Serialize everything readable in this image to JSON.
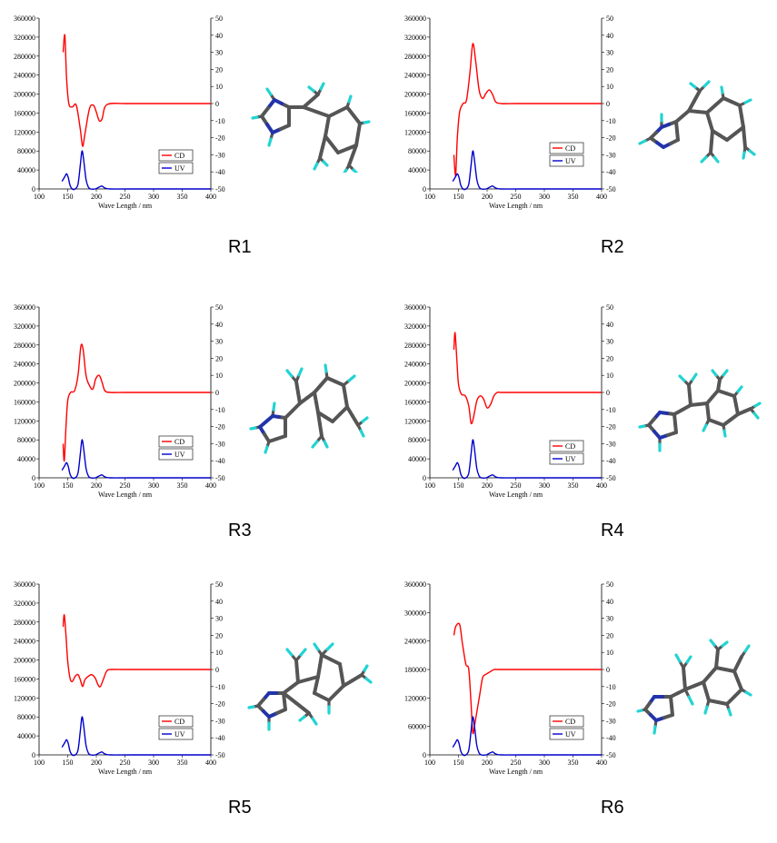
{
  "colors": {
    "cd": "#ff0000",
    "uv": "#0000cc",
    "axis": "#000000"
  },
  "chart_data": [
    {
      "type": "line",
      "label": "R1",
      "xlabel": "Wave Length / nm",
      "xlim": [
        100,
        400
      ],
      "xticks": [
        100,
        150,
        200,
        250,
        300,
        350,
        400
      ],
      "ylim_left": [
        0,
        360000
      ],
      "yticks_left": [
        0,
        40000,
        80000,
        120000,
        160000,
        200000,
        240000,
        280000,
        320000,
        360000
      ],
      "ylim_right": [
        -50,
        50
      ],
      "yticks_right": [
        -50,
        -40,
        -30,
        -20,
        -10,
        0,
        10,
        20,
        30,
        40,
        50
      ],
      "legend": {
        "cd": "CD",
        "uv": "UV"
      },
      "series": [
        {
          "name": "CD",
          "axis": "right",
          "x": [
            142,
            145,
            148,
            152,
            158,
            165,
            172,
            176,
            180,
            188,
            195,
            200,
            205,
            210,
            215,
            225,
            250,
            300,
            400
          ],
          "y": [
            30,
            40,
            15,
            0,
            -2,
            -1,
            -15,
            -25,
            -18,
            -3,
            -1,
            -5,
            -10,
            -9,
            -2,
            0,
            0,
            0,
            0
          ]
        },
        {
          "name": "UV",
          "axis": "left",
          "x": [
            140,
            142,
            145,
            148,
            151,
            154,
            158,
            163,
            168,
            172,
            175,
            178,
            182,
            186,
            190,
            198,
            205,
            210,
            215,
            225,
            260,
            400
          ],
          "y": [
            16000,
            20000,
            26000,
            32000,
            24000,
            8000,
            0,
            0,
            10000,
            50000,
            80000,
            60000,
            20000,
            4000,
            0,
            0,
            4000,
            6000,
            2000,
            0,
            0,
            0
          ]
        }
      ]
    },
    {
      "type": "line",
      "label": "R2",
      "xlabel": "Wave Length / nm",
      "xlim": [
        100,
        400
      ],
      "xticks": [
        100,
        150,
        200,
        250,
        300,
        350,
        400
      ],
      "ylim_left": [
        0,
        360000
      ],
      "yticks_left": [
        0,
        40000,
        80000,
        120000,
        160000,
        200000,
        240000,
        280000,
        320000,
        360000
      ],
      "ylim_right": [
        -50,
        50
      ],
      "yticks_right": [
        -50,
        -40,
        -30,
        -20,
        -10,
        0,
        10,
        20,
        30,
        40,
        50
      ],
      "legend": {
        "cd": "CD",
        "uv": "UV"
      },
      "series": [
        {
          "name": "CD",
          "axis": "right",
          "x": [
            142,
            145,
            148,
            152,
            158,
            164,
            170,
            175,
            180,
            186,
            192,
            198,
            204,
            210,
            215,
            225,
            250,
            300,
            400
          ],
          "y": [
            -30,
            -42,
            -20,
            -5,
            0,
            2,
            18,
            35,
            25,
            8,
            3,
            6,
            8,
            5,
            1,
            0,
            0,
            0,
            0
          ]
        },
        {
          "name": "UV",
          "axis": "left",
          "x": [
            140,
            142,
            145,
            148,
            151,
            154,
            158,
            163,
            168,
            172,
            175,
            178,
            182,
            186,
            190,
            198,
            205,
            210,
            215,
            225,
            260,
            400
          ],
          "y": [
            16000,
            20000,
            26000,
            32000,
            24000,
            8000,
            0,
            0,
            10000,
            50000,
            80000,
            60000,
            20000,
            4000,
            0,
            0,
            4000,
            6000,
            2000,
            0,
            0,
            0
          ]
        }
      ]
    },
    {
      "type": "line",
      "label": "R3",
      "xlabel": "Wave Length / nm",
      "xlim": [
        100,
        400
      ],
      "xticks": [
        100,
        150,
        200,
        250,
        300,
        350,
        400
      ],
      "ylim_left": [
        0,
        360000
      ],
      "yticks_left": [
        0,
        40000,
        80000,
        120000,
        160000,
        200000,
        240000,
        280000,
        320000,
        360000
      ],
      "ylim_right": [
        -50,
        50
      ],
      "yticks_right": [
        -50,
        -40,
        -30,
        -20,
        -10,
        0,
        10,
        20,
        30,
        40,
        50
      ],
      "legend": {
        "cd": "CD",
        "uv": "UV"
      },
      "series": [
        {
          "name": "CD",
          "axis": "right",
          "x": [
            142,
            144,
            147,
            150,
            155,
            162,
            168,
            173,
            177,
            182,
            188,
            194,
            199,
            205,
            210,
            215,
            225,
            250,
            300,
            400
          ],
          "y": [
            -30,
            -40,
            -20,
            -5,
            0,
            1,
            10,
            27,
            25,
            10,
            4,
            2,
            8,
            10,
            6,
            1,
            0,
            0,
            0,
            0
          ]
        },
        {
          "name": "UV",
          "axis": "left",
          "x": [
            140,
            142,
            145,
            148,
            151,
            154,
            158,
            163,
            168,
            172,
            175,
            178,
            182,
            186,
            190,
            198,
            205,
            210,
            215,
            225,
            260,
            400
          ],
          "y": [
            16000,
            20000,
            26000,
            32000,
            24000,
            8000,
            0,
            0,
            10000,
            50000,
            80000,
            60000,
            20000,
            4000,
            0,
            0,
            4000,
            6000,
            2000,
            0,
            0,
            0
          ]
        }
      ]
    },
    {
      "type": "line",
      "label": "R4",
      "xlabel": "Wave Length / nm",
      "xlim": [
        100,
        400
      ],
      "xticks": [
        100,
        150,
        200,
        250,
        300,
        350,
        400
      ],
      "ylim_left": [
        0,
        360000
      ],
      "yticks_left": [
        0,
        40000,
        80000,
        120000,
        160000,
        200000,
        240000,
        280000,
        320000,
        360000
      ],
      "ylim_right": [
        -50,
        50
      ],
      "yticks_right": [
        -50,
        -40,
        -30,
        -20,
        -10,
        0,
        10,
        20,
        30,
        40,
        50
      ],
      "legend": {
        "cd": "CD",
        "uv": "UV"
      },
      "series": [
        {
          "name": "CD",
          "axis": "right",
          "x": [
            142,
            144,
            147,
            150,
            155,
            162,
            168,
            172,
            176,
            182,
            188,
            194,
            200,
            206,
            212,
            218,
            225,
            250,
            300,
            400
          ],
          "y": [
            25,
            35,
            20,
            5,
            -1,
            -2,
            -8,
            -18,
            -15,
            -5,
            -2,
            -4,
            -9,
            -7,
            -2,
            0,
            0,
            0,
            0,
            0
          ]
        },
        {
          "name": "UV",
          "axis": "left",
          "x": [
            140,
            142,
            145,
            148,
            151,
            154,
            158,
            163,
            168,
            172,
            175,
            178,
            182,
            186,
            190,
            198,
            205,
            210,
            215,
            225,
            260,
            400
          ],
          "y": [
            16000,
            20000,
            26000,
            32000,
            24000,
            8000,
            0,
            0,
            10000,
            50000,
            80000,
            60000,
            20000,
            4000,
            0,
            0,
            4000,
            6000,
            2000,
            0,
            0,
            0
          ]
        }
      ]
    },
    {
      "type": "line",
      "label": "R5",
      "xlabel": "Wave Length / nm",
      "xlim": [
        100,
        400
      ],
      "xticks": [
        100,
        150,
        200,
        250,
        300,
        350,
        400
      ],
      "ylim_left": [
        0,
        360000
      ],
      "yticks_left": [
        0,
        40000,
        80000,
        120000,
        160000,
        200000,
        240000,
        280000,
        320000,
        360000
      ],
      "ylim_right": [
        -50,
        50
      ],
      "yticks_right": [
        -50,
        -40,
        -30,
        -20,
        -10,
        0,
        10,
        20,
        30,
        40,
        50
      ],
      "legend": {
        "cd": "CD",
        "uv": "UV"
      },
      "series": [
        {
          "name": "CD",
          "axis": "right",
          "x": [
            142,
            144,
            147,
            150,
            154,
            158,
            163,
            168,
            172,
            176,
            180,
            186,
            192,
            198,
            203,
            207,
            212,
            218,
            225,
            250,
            300,
            400
          ],
          "y": [
            25,
            32,
            20,
            5,
            -5,
            -7,
            -4,
            -3,
            -6,
            -10,
            -6,
            -4,
            -3,
            -5,
            -9,
            -10,
            -6,
            -1,
            0,
            0,
            0,
            0
          ]
        },
        {
          "name": "UV",
          "axis": "left",
          "x": [
            140,
            142,
            145,
            148,
            151,
            154,
            158,
            163,
            168,
            172,
            175,
            178,
            182,
            186,
            190,
            198,
            205,
            210,
            215,
            225,
            260,
            400
          ],
          "y": [
            16000,
            20000,
            26000,
            32000,
            24000,
            8000,
            0,
            0,
            10000,
            50000,
            80000,
            60000,
            20000,
            4000,
            0,
            0,
            4000,
            6000,
            2000,
            0,
            0,
            0
          ]
        }
      ]
    },
    {
      "type": "line",
      "label": "R6",
      "xlabel": "Wave Length / nm",
      "xlim": [
        100,
        400
      ],
      "xticks": [
        100,
        150,
        200,
        250,
        300,
        350,
        400
      ],
      "ylim_left": [
        0,
        360000
      ],
      "yticks_left": [
        0,
        60000,
        120000,
        180000,
        240000,
        300000,
        360000
      ],
      "ylim_right": [
        -50,
        50
      ],
      "yticks_right": [
        -50,
        -40,
        -30,
        -20,
        -10,
        0,
        10,
        20,
        30,
        40,
        50
      ],
      "legend": {
        "cd": "CD",
        "uv": "UV"
      },
      "series": [
        {
          "name": "CD",
          "axis": "right",
          "x": [
            142,
            145,
            150,
            153,
            157,
            163,
            168,
            172,
            175,
            178,
            182,
            187,
            192,
            197,
            202,
            207,
            212,
            218,
            225,
            250,
            300,
            400
          ],
          "y": [
            20,
            25,
            27,
            25,
            15,
            3,
            0,
            -20,
            -37,
            -33,
            -25,
            -15,
            -5,
            -3,
            -2,
            -1,
            0,
            0,
            0,
            0,
            0,
            0
          ]
        },
        {
          "name": "UV",
          "axis": "left",
          "x": [
            140,
            142,
            145,
            148,
            151,
            154,
            158,
            163,
            168,
            172,
            175,
            178,
            182,
            186,
            190,
            198,
            205,
            210,
            215,
            225,
            260,
            400
          ],
          "y": [
            16000,
            20000,
            26000,
            32000,
            24000,
            8000,
            0,
            0,
            10000,
            50000,
            80000,
            60000,
            20000,
            4000,
            0,
            0,
            4000,
            6000,
            2000,
            0,
            0,
            0
          ]
        }
      ]
    }
  ]
}
